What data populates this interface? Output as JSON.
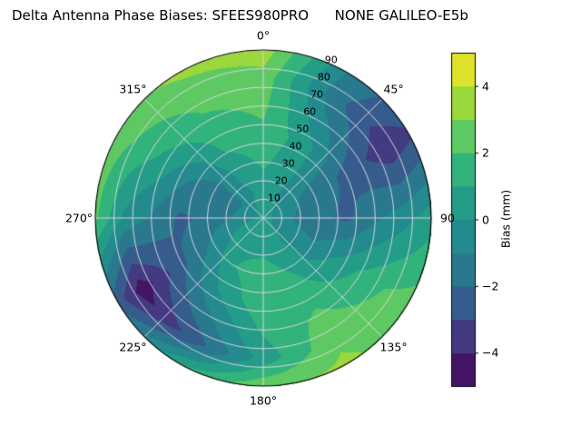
{
  "title": "Delta Antenna Phase Biases: SFEES980PRO      NONE GALILEO-E5b",
  "colorbar": {
    "label": "Bias (mm)",
    "min": -5,
    "max": 5,
    "ticks": [
      {
        "value": 4,
        "label": "4"
      },
      {
        "value": 2,
        "label": "2"
      },
      {
        "value": 0,
        "label": "0"
      },
      {
        "value": -2,
        "label": "−2"
      },
      {
        "value": -4,
        "label": "−4"
      }
    ],
    "colormap": "viridis",
    "colormap_stops": [
      [
        0.0,
        "#440154"
      ],
      [
        0.125,
        "#46327e"
      ],
      [
        0.25,
        "#365c8d"
      ],
      [
        0.375,
        "#277f8e"
      ],
      [
        0.5,
        "#21918c"
      ],
      [
        0.625,
        "#27ad81"
      ],
      [
        0.75,
        "#5ec962"
      ],
      [
        0.875,
        "#aadc32"
      ],
      [
        1.0,
        "#fde725"
      ]
    ]
  },
  "polar_axes": {
    "angular_ticks": [
      {
        "angle": 0,
        "label": "0°"
      },
      {
        "angle": 45,
        "label": "45°"
      },
      {
        "angle": 90,
        "label": "90"
      },
      {
        "angle": 135,
        "label": "135°"
      },
      {
        "angle": 180,
        "label": "180°"
      },
      {
        "angle": 225,
        "label": "225°"
      },
      {
        "angle": 270,
        "label": "270°"
      },
      {
        "angle": 315,
        "label": "315°"
      }
    ],
    "radial_ticks": [
      {
        "value": 10,
        "label": "10"
      },
      {
        "value": 20,
        "label": "20"
      },
      {
        "value": 30,
        "label": "30"
      },
      {
        "value": 40,
        "label": "40"
      },
      {
        "value": 50,
        "label": "50"
      },
      {
        "value": 60,
        "label": "60"
      },
      {
        "value": 70,
        "label": "70"
      },
      {
        "value": 80,
        "label": "80"
      },
      {
        "value": 90,
        "label": "90"
      }
    ],
    "radial_label_azimuth_deg": 22.5,
    "grid_color": "#d6d6de"
  },
  "chart_data": {
    "type": "heatmap",
    "projection": "polar",
    "title": "Delta Antenna Phase Biases: SFEES980PRO      NONE GALILEO-E5b",
    "series_label": "Bias (mm)",
    "orientation": "0° at top, azimuth increases clockwise, radius = zenith angle (0 center, 90 at rim)",
    "contour_step_mm": 1,
    "value_range_mm": [
      -5,
      5
    ],
    "azimuth_deg": [
      0,
      30,
      60,
      90,
      120,
      150,
      180,
      210,
      240,
      270,
      300,
      330
    ],
    "zenith_deg": [
      0,
      15,
      30,
      45,
      60,
      75,
      90
    ],
    "bias_mm_grid": [
      [
        0.3,
        0.3,
        0.3,
        0.3,
        0.3,
        0.3,
        0.3,
        0.3,
        0.3,
        0.3,
        0.3,
        0.3
      ],
      [
        0.5,
        0.0,
        -0.6,
        -1.0,
        -0.6,
        0.2,
        0.6,
        0.8,
        0.3,
        -0.8,
        -1.2,
        -0.2
      ],
      [
        1.2,
        0.3,
        -1.4,
        -1.8,
        -0.8,
        0.8,
        1.6,
        1.0,
        -0.6,
        -1.8,
        -1.6,
        0.4
      ],
      [
        1.8,
        0.4,
        -2.0,
        -2.2,
        0.2,
        1.5,
        1.8,
        0.2,
        -1.8,
        -2.2,
        -0.8,
        1.2
      ],
      [
        2.2,
        -0.6,
        -2.8,
        -1.2,
        1.2,
        2.2,
        1.2,
        -1.2,
        -3.2,
        -1.2,
        0.6,
        1.8
      ],
      [
        2.6,
        -1.6,
        -3.8,
        -0.4,
        2.0,
        2.8,
        0.4,
        -2.6,
        -4.6,
        -0.2,
        1.6,
        2.4
      ],
      [
        3.6,
        -1.0,
        -3.2,
        0.6,
        2.4,
        3.2,
        2.8,
        1.0,
        -2.5,
        2.2,
        2.6,
        3.2
      ]
    ]
  }
}
